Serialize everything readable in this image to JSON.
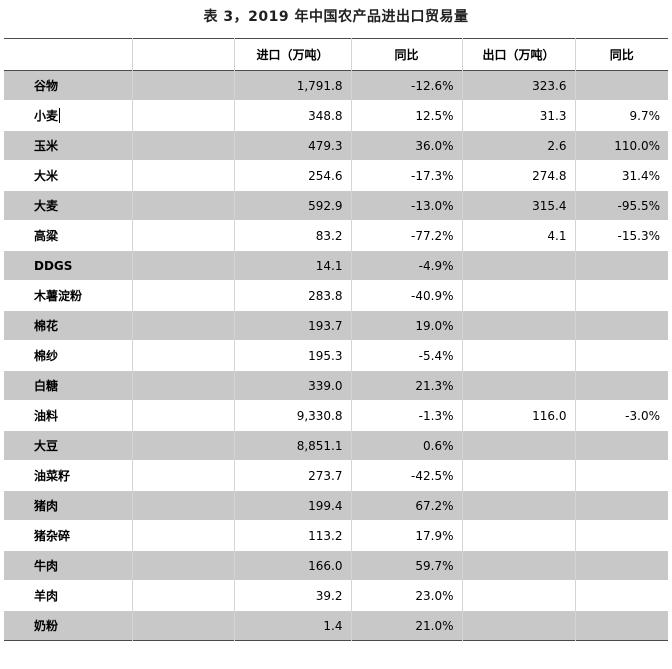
{
  "title": "表 3，2019 年中国农产品进出口贸易量",
  "headers": [
    "",
    "",
    "进口（万吨）",
    "同比",
    "出口（万吨）",
    "同比"
  ],
  "rows": [
    {
      "name": "谷物",
      "import": "1,791.8",
      "import_yoy": "-12.6%",
      "export": "323.6",
      "export_yoy": ""
    },
    {
      "name": "小麦",
      "import": "348.8",
      "import_yoy": "12.5%",
      "export": "31.3",
      "export_yoy": "9.7%"
    },
    {
      "name": "玉米",
      "import": "479.3",
      "import_yoy": "36.0%",
      "export": "2.6",
      "export_yoy": "110.0%"
    },
    {
      "name": "大米",
      "import": "254.6",
      "import_yoy": "-17.3%",
      "export": "274.8",
      "export_yoy": "31.4%"
    },
    {
      "name": "大麦",
      "import": "592.9",
      "import_yoy": "-13.0%",
      "export": "315.4",
      "export_yoy": "-95.5%"
    },
    {
      "name": "高粱",
      "import": "83.2",
      "import_yoy": "-77.2%",
      "export": "4.1",
      "export_yoy": "-15.3%"
    },
    {
      "name": "DDGS",
      "import": "14.1",
      "import_yoy": "-4.9%",
      "export": "",
      "export_yoy": ""
    },
    {
      "name": "木薯淀粉",
      "import": "283.8",
      "import_yoy": "-40.9%",
      "export": "",
      "export_yoy": ""
    },
    {
      "name": "棉花",
      "import": "193.7",
      "import_yoy": "19.0%",
      "export": "",
      "export_yoy": ""
    },
    {
      "name": "棉纱",
      "import": "195.3",
      "import_yoy": "-5.4%",
      "export": "",
      "export_yoy": ""
    },
    {
      "name": "白糖",
      "import": "339.0",
      "import_yoy": "21.3%",
      "export": "",
      "export_yoy": ""
    },
    {
      "name": "油料",
      "import": "9,330.8",
      "import_yoy": "-1.3%",
      "export": "116.0",
      "export_yoy": "-3.0%"
    },
    {
      "name": "大豆",
      "import": "8,851.1",
      "import_yoy": "0.6%",
      "export": "",
      "export_yoy": ""
    },
    {
      "name": "油菜籽",
      "import": "273.7",
      "import_yoy": "-42.5%",
      "export": "",
      "export_yoy": ""
    },
    {
      "name": "猪肉",
      "import": "199.4",
      "import_yoy": "67.2%",
      "export": "",
      "export_yoy": ""
    },
    {
      "name": "猪杂碎",
      "import": "113.2",
      "import_yoy": "17.9%",
      "export": "",
      "export_yoy": ""
    },
    {
      "name": "牛肉",
      "import": "166.0",
      "import_yoy": "59.7%",
      "export": "",
      "export_yoy": ""
    },
    {
      "name": "羊肉",
      "import": "39.2",
      "import_yoy": "23.0%",
      "export": "",
      "export_yoy": ""
    },
    {
      "name": "奶粉",
      "import": "1.4",
      "import_yoy": "21.0%",
      "export": "",
      "export_yoy": ""
    }
  ],
  "colors": {
    "shade": "#c8c8c8",
    "rule": "#4a4a4a"
  }
}
